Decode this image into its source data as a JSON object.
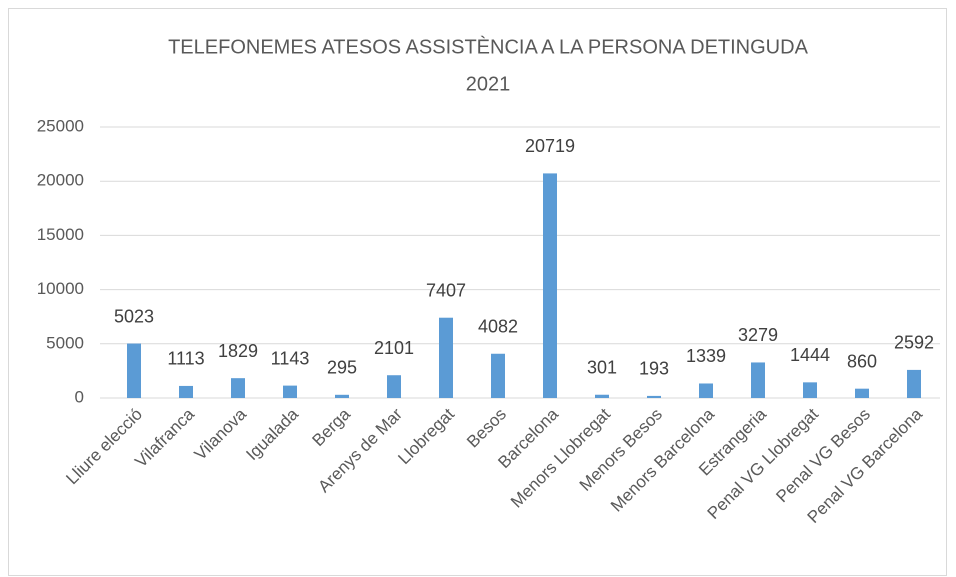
{
  "chart_data": {
    "type": "bar",
    "title": "TELEFONEMES ATESOS ASSISTÈNCIA A LA PERSONA DETINGUDA",
    "subtitle": "2021",
    "categories": [
      "Lliure elecció",
      "Vilafranca",
      "Vilanova",
      "Igualada",
      "Berga",
      "Arenys de Mar",
      "Llobregat",
      "Besos",
      "Barcelona",
      "Menors Llobregat",
      "Menors Besos",
      "Menors Barcelona",
      "Estrangeria",
      "Penal VG Llobregat",
      "Penal VG Besos",
      "Penal VG Barcelona"
    ],
    "values": [
      5023,
      1113,
      1829,
      1143,
      295,
      2101,
      7407,
      4082,
      20719,
      301,
      193,
      1339,
      3279,
      1444,
      860,
      2592
    ],
    "color": "#5b9bd5",
    "ylim": [
      0,
      25000
    ],
    "yticks": [
      0,
      5000,
      10000,
      15000,
      20000,
      25000
    ],
    "grid": true
  }
}
